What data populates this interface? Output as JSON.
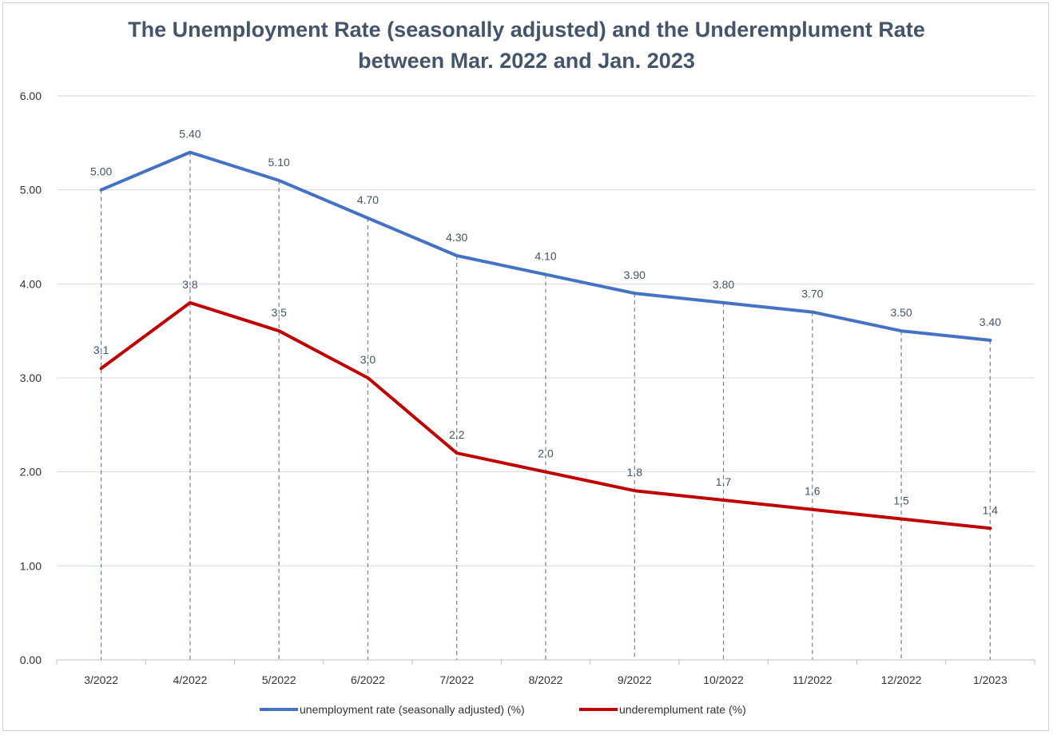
{
  "chart_data": {
    "type": "line",
    "title_line1": "The Unemployment Rate (seasonally adjusted) and the Underemplument Rate",
    "title_line2": "between  Mar. 2022 and Jan. 2023",
    "categories": [
      "3/2022",
      "4/2022",
      "5/2022",
      "6/2022",
      "7/2022",
      "8/2022",
      "9/2022",
      "10/2022",
      "11/2022",
      "12/2022",
      "1/2023"
    ],
    "y_ticks": [
      "0.00",
      "1.00",
      "2.00",
      "3.00",
      "4.00",
      "5.00",
      "6.00"
    ],
    "ylim": [
      0,
      6
    ],
    "grid": "horizontal",
    "drop_lines": true,
    "legend_position": "bottom",
    "series": [
      {
        "name": "unemployment rate (seasonally adjusted) (%)",
        "color": "#4472c4",
        "values": [
          5.0,
          5.4,
          5.1,
          4.7,
          4.3,
          4.1,
          3.9,
          3.8,
          3.7,
          3.5,
          3.4
        ],
        "labels": [
          "5.00",
          "5.40",
          "5.10",
          "4.70",
          "4.30",
          "4.10",
          "3.90",
          "3.80",
          "3.70",
          "3.50",
          "3.40"
        ]
      },
      {
        "name": "underemplument rate (%)",
        "color": "#c00000",
        "values": [
          3.1,
          3.8,
          3.5,
          3.0,
          2.2,
          2.0,
          1.8,
          1.7,
          1.6,
          1.5,
          1.4
        ],
        "labels": [
          "3.1",
          "3.8",
          "3.5",
          "3.0",
          "2.2",
          "2.0",
          "1.8",
          "1.7",
          "1.6",
          "1.5",
          "1.4"
        ]
      }
    ]
  }
}
